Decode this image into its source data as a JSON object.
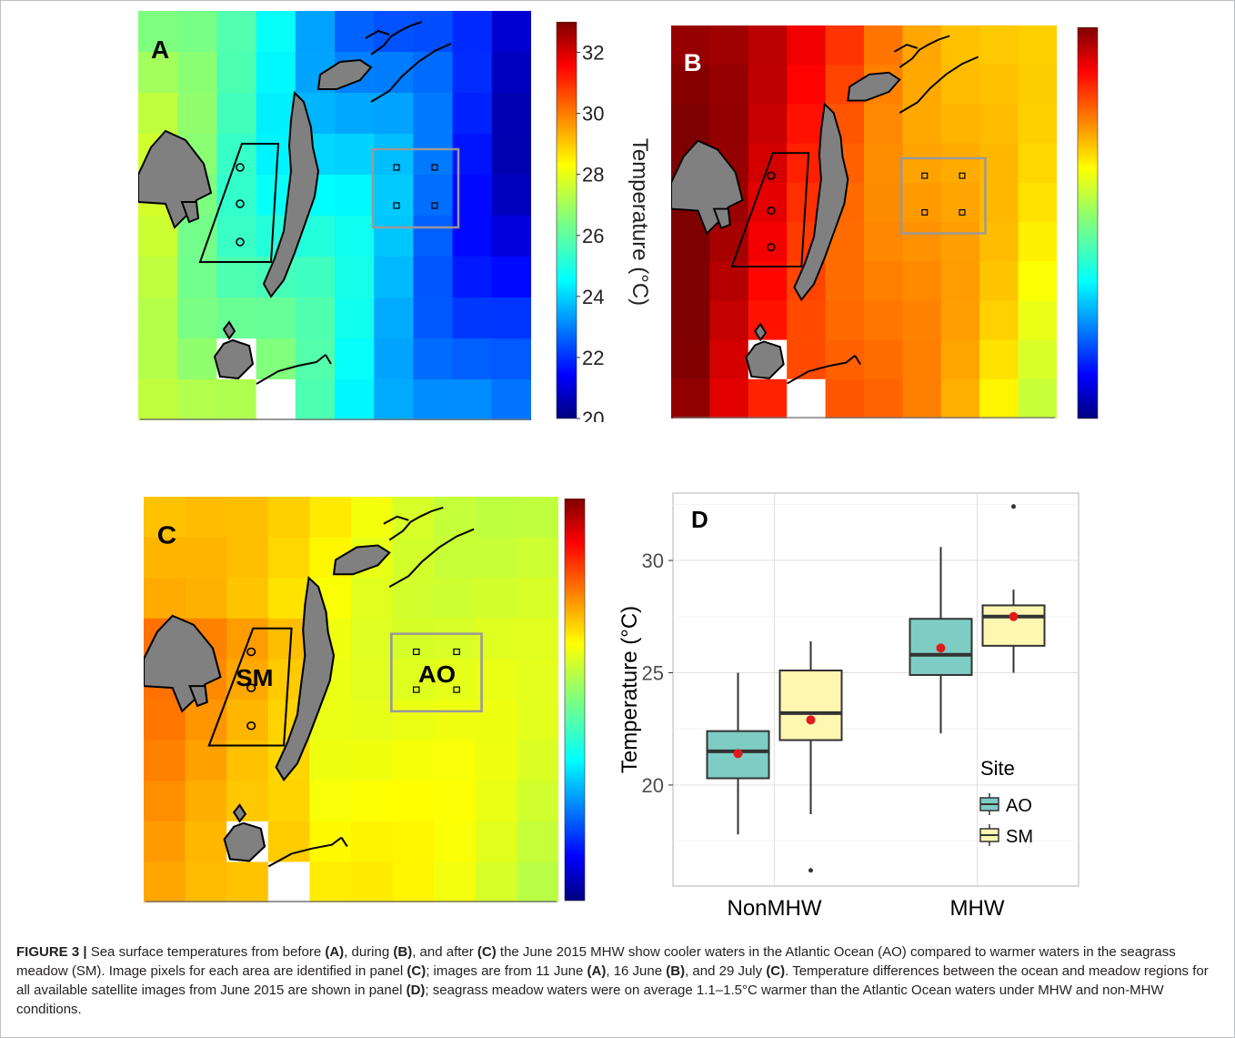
{
  "figure": {
    "panels": {
      "A": {
        "letter": "A"
      },
      "B": {
        "letter": "B"
      },
      "C": {
        "letter": "C",
        "sm_label": "SM",
        "ao_label": "AO"
      },
      "D": {
        "letter": "D"
      }
    },
    "colorbar": {
      "title": "Temperature (°C)",
      "ticks": [
        "32",
        "30",
        "28",
        "26",
        "24",
        "22",
        "20"
      ],
      "range": [
        20,
        33
      ]
    },
    "colors": {
      "land": "#808080",
      "ao_box": "#999999",
      "sm_box": "#000000",
      "box_ao_fill": "#7ecdc4",
      "box_sm_fill": "#fdf7b2",
      "mean_dot": "#e31a1c"
    }
  },
  "chart_data": {
    "type": "box",
    "title": "",
    "xlabel": "",
    "ylabel": "Temperature (°C)",
    "categories": [
      "NonMHW",
      "MHW"
    ],
    "yticks": [
      "20",
      "25",
      "30"
    ],
    "ylim": [
      15.5,
      33
    ],
    "grid": true,
    "legend": {
      "title": "Site",
      "placement": "bottom-right",
      "entries": [
        "AO",
        "SM"
      ]
    },
    "series": [
      {
        "name": "AO",
        "boxes": [
          {
            "category": "NonMHW",
            "whisker_low": 17.8,
            "q1": 20.3,
            "median": 21.5,
            "q3": 22.4,
            "whisker_high": 25.0,
            "mean": 21.4,
            "outliers": []
          },
          {
            "category": "MHW",
            "whisker_low": 22.3,
            "q1": 24.9,
            "median": 25.8,
            "q3": 27.4,
            "whisker_high": 30.6,
            "mean": 26.1,
            "outliers": []
          }
        ]
      },
      {
        "name": "SM",
        "boxes": [
          {
            "category": "NonMHW",
            "whisker_low": 18.7,
            "q1": 22.0,
            "median": 23.2,
            "q3": 25.1,
            "whisker_high": 26.4,
            "mean": 22.9,
            "outliers": [
              16.2
            ]
          },
          {
            "category": "MHW",
            "whisker_low": 25.0,
            "q1": 26.2,
            "median": 27.5,
            "q3": 28.0,
            "whisker_high": 28.7,
            "mean": 27.5,
            "outliers": [
              32.4
            ]
          }
        ]
      }
    ]
  },
  "caption": {
    "label": "FIGURE 3 |",
    "t1": " Sea surface temperatures from before ",
    "b1": "(A)",
    "t2": ", during ",
    "b2": "(B)",
    "t3": ", and after ",
    "b3": "(C)",
    "t4": " the June 2015 MHW show cooler waters in the Atlantic Ocean (AO) compared to warmer waters in the seagrass meadow (SM). Image pixels for each area are identified in panel ",
    "b4": "(C)",
    "t5": "; images are from 11 June ",
    "b5": "(A)",
    "t6": ", 16 June ",
    "b6": "(B)",
    "t7": ", and 29 July ",
    "b7": "(C)",
    "t8": ". Temperature differences between the ocean and meadow regions for all available satellite images from June 2015 are shown in panel ",
    "b8": "(D)",
    "t9": "; seagrass meadow waters were on average 1.1–1.5°C warmer than the Atlantic Ocean waters under MHW and non-MHW conditions."
  }
}
